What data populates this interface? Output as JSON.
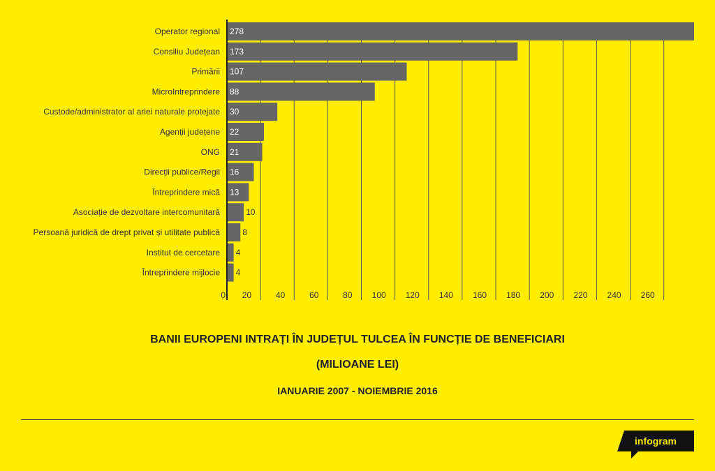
{
  "chart_data": {
    "type": "bar",
    "orientation": "horizontal",
    "title": "BANII EUROPENI INTRAȚI ÎN JUDEȚUL TULCEA ÎN FUNCȚIE DE BENEFICIARI",
    "subtitle": "(MILIOANE LEI)",
    "period": "IANUARIE 2007 - NOIEMBRIE 2016",
    "categories": [
      "Operator regional",
      "Consiliu Județean",
      "Primării",
      "MicroIntreprindere",
      "Custode/administrator al ariei naturale protejate",
      "Agenții județene",
      "ONG",
      "Direcții publice/Regii",
      "Întreprindere mică",
      "Asociație de dezvoltare intercomunitară",
      "Persoană juridică de drept privat și utilitate publică",
      "Institut de cercetare",
      "Întreprindere mijlocie"
    ],
    "values": [
      278,
      173,
      107,
      88,
      30,
      22,
      21,
      16,
      13,
      10,
      8,
      4,
      4
    ],
    "xticks": [
      0,
      20,
      40,
      60,
      80,
      100,
      120,
      140,
      160,
      180,
      200,
      220,
      240,
      260
    ],
    "xlim": [
      0,
      278
    ],
    "grid": true,
    "bar_color": "#666666",
    "value_label_color": "#ffffff",
    "value_label_outside_color": "#333333",
    "grid_color": "#555555"
  },
  "brand": {
    "logo_text": "infogram",
    "logo_bg": "#111111",
    "logo_fg": "#ffed00"
  },
  "colors": {
    "background": "#ffed00",
    "text": "#222222"
  }
}
